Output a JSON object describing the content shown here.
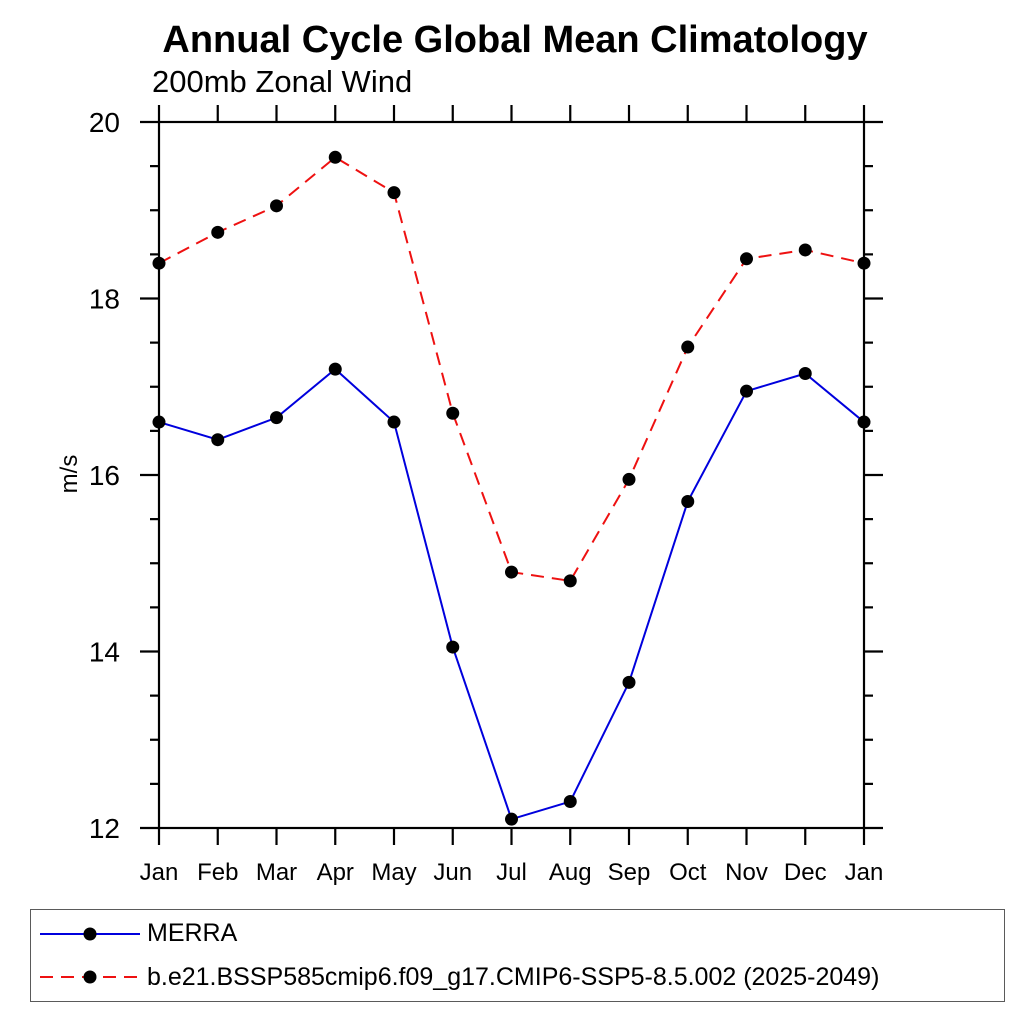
{
  "chart_data": {
    "type": "line",
    "title": "Annual Cycle Global Mean Climatology",
    "subtitle": "200mb Zonal Wind",
    "ylabel": "m/s",
    "categories": [
      "Jan",
      "Feb",
      "Mar",
      "Apr",
      "May",
      "Jun",
      "Jul",
      "Aug",
      "Sep",
      "Oct",
      "Nov",
      "Dec",
      "Jan"
    ],
    "ylim": [
      12,
      20
    ],
    "y_major_ticks": [
      12,
      14,
      16,
      18,
      20
    ],
    "y_tick_labels": [
      "12",
      "14",
      "16",
      "18",
      "20"
    ],
    "y_minor_step": 0.5,
    "grid": false,
    "axis_color": "#000000",
    "marker_color": "#000000",
    "marker": "filled-circle",
    "legend_position": "bottom-left",
    "series": [
      {
        "name": "MERRA",
        "color": "#0000dd",
        "line_style": "solid",
        "values": [
          16.6,
          16.4,
          16.65,
          17.2,
          16.6,
          14.05,
          12.1,
          12.3,
          13.65,
          15.7,
          16.95,
          17.15,
          16.6
        ]
      },
      {
        "name": "b.e21.BSSP585cmip6.f09_g17.CMIP6-SSP5-8.5.002 (2025-2049)",
        "color": "#ee1111",
        "line_style": "dashed",
        "values": [
          18.4,
          18.75,
          19.05,
          19.6,
          19.2,
          16.7,
          14.9,
          14.8,
          15.95,
          17.45,
          18.45,
          18.55,
          18.4
        ]
      }
    ]
  }
}
